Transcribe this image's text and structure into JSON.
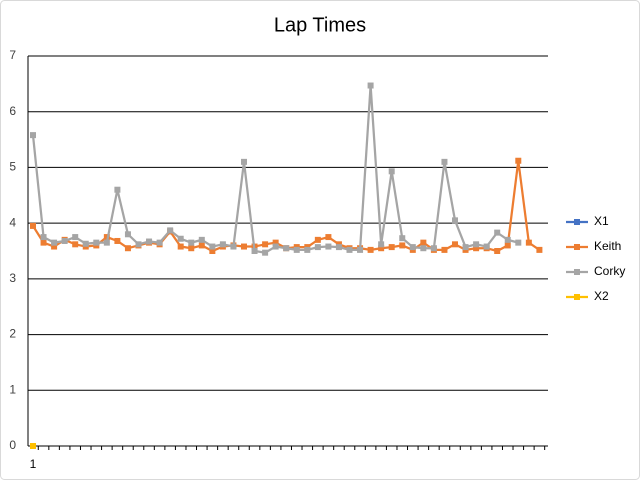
{
  "chart_data": {
    "type": "line",
    "title": "Lap Times",
    "categories": [
      "1",
      null,
      null,
      null,
      null,
      null,
      null,
      null,
      null,
      null,
      null,
      null,
      null,
      null,
      null,
      null,
      null,
      null,
      null,
      null,
      null,
      null,
      null,
      null,
      null,
      null,
      null,
      null,
      null,
      null,
      null,
      null,
      null,
      null,
      null,
      null,
      null,
      null,
      null,
      null,
      null,
      null,
      null,
      null,
      null,
      null,
      null,
      null,
      null
    ],
    "series": [
      {
        "name": "X1",
        "color": "#4472c4",
        "values": [
          0,
          null,
          null,
          null,
          null,
          null,
          null,
          null,
          null,
          null,
          null,
          null,
          null,
          null,
          null,
          null,
          null,
          null,
          null,
          null,
          null,
          null,
          null,
          null,
          null,
          null,
          null,
          null,
          null,
          null,
          null,
          null,
          null,
          null,
          null,
          null,
          null,
          null,
          null,
          null,
          null,
          null,
          null,
          null,
          null,
          null,
          null,
          null,
          null
        ]
      },
      {
        "name": "Keith",
        "color": "#ed7d31",
        "values": [
          3.95,
          3.65,
          3.58,
          3.7,
          3.62,
          3.58,
          3.6,
          3.75,
          3.68,
          3.55,
          3.6,
          3.65,
          3.62,
          3.85,
          3.58,
          3.55,
          3.6,
          3.5,
          3.58,
          3.6,
          3.58,
          3.58,
          3.62,
          3.65,
          3.55,
          3.57,
          3.57,
          3.7,
          3.75,
          3.62,
          3.55,
          3.55,
          3.52,
          3.55,
          3.57,
          3.6,
          3.52,
          3.65,
          3.52,
          3.52,
          3.62,
          3.52,
          3.55,
          3.55,
          3.5,
          3.6,
          5.12,
          3.65,
          3.52
        ]
      },
      {
        "name": "Corky",
        "color": "#a5a5a5",
        "values": [
          5.58,
          3.75,
          3.65,
          3.68,
          3.75,
          3.63,
          3.65,
          3.65,
          4.6,
          3.8,
          3.62,
          3.67,
          3.65,
          3.87,
          3.72,
          3.65,
          3.7,
          3.58,
          3.62,
          3.58,
          5.1,
          3.5,
          3.47,
          3.58,
          3.55,
          3.52,
          3.52,
          3.57,
          3.58,
          3.57,
          3.52,
          3.52,
          6.47,
          3.62,
          4.93,
          3.73,
          3.57,
          3.55,
          3.55,
          5.1,
          4.05,
          3.57,
          3.62,
          3.58,
          3.83,
          3.7,
          3.65,
          null,
          null
        ]
      },
      {
        "name": "X2",
        "color": "#ffc000",
        "values": [
          0,
          null,
          null,
          null,
          null,
          null,
          null,
          null,
          null,
          null,
          null,
          null,
          null,
          null,
          null,
          null,
          null,
          null,
          null,
          null,
          null,
          null,
          null,
          null,
          null,
          null,
          null,
          null,
          null,
          null,
          null,
          null,
          null,
          null,
          null,
          null,
          null,
          null,
          null,
          null,
          null,
          null,
          null,
          null,
          null,
          null,
          null,
          null,
          null
        ]
      }
    ],
    "ylim": [
      0,
      7
    ],
    "yticks": [
      0,
      1,
      2,
      3,
      4,
      5,
      6,
      7
    ],
    "grid": true,
    "legend": "right"
  }
}
